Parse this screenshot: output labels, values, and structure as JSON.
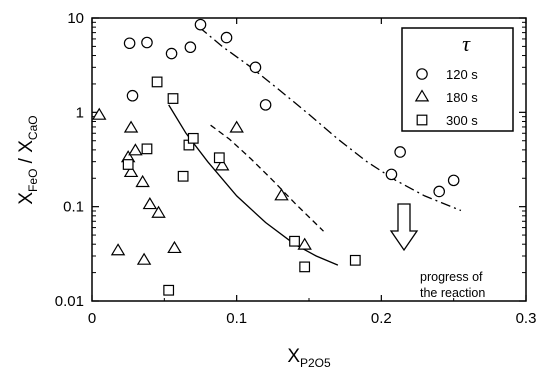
{
  "chart_data": {
    "type": "scatter",
    "x_axis": {
      "label_main": "X",
      "label_sub": "P2O5",
      "range": [
        0,
        0.3
      ],
      "ticks": [
        "0",
        "0.1",
        "0.2",
        "0.3"
      ],
      "tick_values": [
        0,
        0.1,
        0.2,
        0.3
      ]
    },
    "y_axis": {
      "label_num_main": "X",
      "label_num_sub": "FeO",
      "label_sep": " / ",
      "label_den_main": "X",
      "label_den_sub": "CaO",
      "scale": "log",
      "range": [
        0.01,
        10
      ],
      "ticks": [
        "0.01",
        "0.1",
        "1",
        "10"
      ],
      "tick_values": [
        0.01,
        0.1,
        1,
        10
      ]
    },
    "grid": false,
    "legend": {
      "title": "τ",
      "placement": "top-right"
    },
    "series": [
      {
        "name": "120 s",
        "marker": "circle",
        "points": [
          [
            0.026,
            5.4
          ],
          [
            0.038,
            5.5
          ],
          [
            0.028,
            1.5
          ],
          [
            0.055,
            4.2
          ],
          [
            0.068,
            4.9
          ],
          [
            0.075,
            8.5
          ],
          [
            0.093,
            6.2
          ],
          [
            0.113,
            3.0
          ],
          [
            0.12,
            1.2
          ],
          [
            0.207,
            0.22
          ],
          [
            0.213,
            0.38
          ],
          [
            0.24,
            0.145
          ],
          [
            0.25,
            0.19
          ]
        ]
      },
      {
        "name": "180 s",
        "marker": "triangle",
        "points": [
          [
            0.005,
            0.93
          ],
          [
            0.025,
            0.33
          ],
          [
            0.027,
            0.68
          ],
          [
            0.027,
            0.23
          ],
          [
            0.03,
            0.39
          ],
          [
            0.035,
            0.18
          ],
          [
            0.04,
            0.105
          ],
          [
            0.046,
            0.085
          ],
          [
            0.018,
            0.034
          ],
          [
            0.036,
            0.027
          ],
          [
            0.057,
            0.036
          ],
          [
            0.09,
            0.27
          ],
          [
            0.1,
            0.68
          ],
          [
            0.131,
            0.13
          ],
          [
            0.147,
            0.039
          ]
        ]
      },
      {
        "name": "300 s",
        "marker": "square",
        "points": [
          [
            0.025,
            0.28
          ],
          [
            0.038,
            0.41
          ],
          [
            0.045,
            2.1
          ],
          [
            0.056,
            1.4
          ],
          [
            0.063,
            0.21
          ],
          [
            0.067,
            0.45
          ],
          [
            0.07,
            0.53
          ],
          [
            0.088,
            0.33
          ],
          [
            0.053,
            0.013
          ],
          [
            0.14,
            0.043
          ],
          [
            0.147,
            0.023
          ],
          [
            0.182,
            0.027
          ]
        ]
      }
    ],
    "curves": [
      {
        "style": "dash-dot",
        "points": [
          [
            0.074,
            8.0
          ],
          [
            0.09,
            5.0
          ],
          [
            0.11,
            3.0
          ],
          [
            0.13,
            1.7
          ],
          [
            0.15,
            0.95
          ],
          [
            0.17,
            0.52
          ],
          [
            0.19,
            0.3
          ],
          [
            0.21,
            0.19
          ],
          [
            0.23,
            0.13
          ],
          [
            0.255,
            0.091
          ]
        ]
      },
      {
        "style": "dashed",
        "points": [
          [
            0.082,
            0.73
          ],
          [
            0.095,
            0.52
          ],
          [
            0.11,
            0.32
          ],
          [
            0.125,
            0.19
          ],
          [
            0.14,
            0.11
          ],
          [
            0.16,
            0.055
          ]
        ]
      },
      {
        "style": "solid",
        "points": [
          [
            0.053,
            1.2
          ],
          [
            0.065,
            0.6
          ],
          [
            0.08,
            0.3
          ],
          [
            0.1,
            0.13
          ],
          [
            0.12,
            0.068
          ],
          [
            0.14,
            0.04
          ],
          [
            0.155,
            0.03
          ],
          [
            0.17,
            0.024
          ]
        ]
      }
    ],
    "annotation": {
      "line1": "progress of",
      "line2": "the reaction",
      "arrow": "down-arrow",
      "arrow_at": [
        0.197,
        0.042
      ]
    }
  }
}
